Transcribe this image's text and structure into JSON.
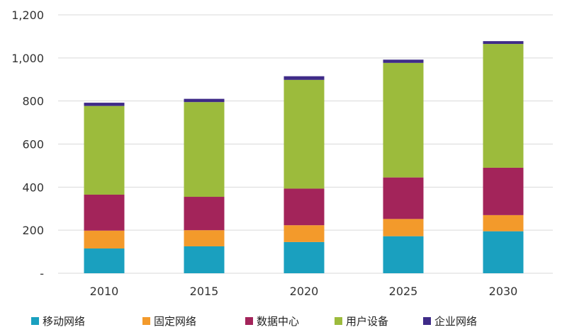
{
  "chart_data": {
    "type": "bar",
    "stacked": true,
    "categories": [
      "2010",
      "2015",
      "2020",
      "2025",
      "2030"
    ],
    "series": [
      {
        "name": "移动网络",
        "color": "#1aa0bf",
        "values": [
          115,
          125,
          145,
          172,
          195
        ]
      },
      {
        "name": "固定网络",
        "color": "#f39a2b",
        "values": [
          83,
          75,
          78,
          80,
          75
        ]
      },
      {
        "name": "数据中心",
        "color": "#a3245a",
        "values": [
          167,
          155,
          170,
          193,
          220
        ]
      },
      {
        "name": "用户设备",
        "color": "#9cbb3c",
        "values": [
          412,
          440,
          505,
          532,
          575
        ]
      },
      {
        "name": "企业网络",
        "color": "#3f2b88",
        "values": [
          15,
          15,
          17,
          15,
          13
        ]
      }
    ],
    "ylim": [
      0,
      1200
    ],
    "yticks": [
      {
        "value": 0,
        "label": "-"
      },
      {
        "value": 200,
        "label": "200"
      },
      {
        "value": 400,
        "label": "400"
      },
      {
        "value": 600,
        "label": "600"
      },
      {
        "value": 800,
        "label": "800"
      },
      {
        "value": 1000,
        "label": "1,000"
      },
      {
        "value": 1200,
        "label": "1,200"
      }
    ],
    "grid": true,
    "legend": "bottom",
    "title": "",
    "xlabel": "",
    "ylabel": ""
  }
}
